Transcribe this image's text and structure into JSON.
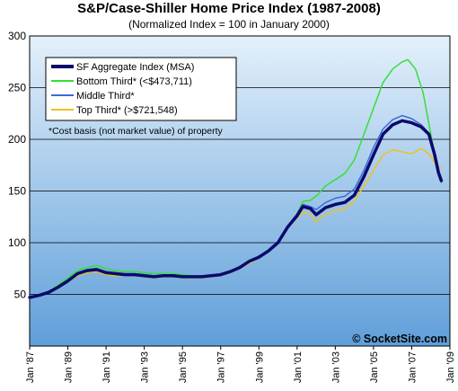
{
  "chart_data": {
    "type": "line",
    "title": "S&P/Case-Shiller Home Price Index (1987-2008)",
    "subtitle": "(Normalized Index = 100 in January 2000)",
    "note": "*Cost basis (not market value) of property",
    "watermark": "© SocketSite.com",
    "ylim": [
      0,
      300
    ],
    "yticks": [
      50,
      100,
      150,
      200,
      250,
      300
    ],
    "xlim": [
      1987.0,
      2009.0
    ],
    "xticks": [
      {
        "x": 1987,
        "label": "Jan '87"
      },
      {
        "x": 1989,
        "label": "Jan '89"
      },
      {
        "x": 1991,
        "label": "Jan '91"
      },
      {
        "x": 1993,
        "label": "Jan '93"
      },
      {
        "x": 1995,
        "label": "Jan '95"
      },
      {
        "x": 1997,
        "label": "Jan '97"
      },
      {
        "x": 1999,
        "label": "Jan '99"
      },
      {
        "x": 2001,
        "label": "Jan '01"
      },
      {
        "x": 2003,
        "label": "Jan '03"
      },
      {
        "x": 2005,
        "label": "Jan '05"
      },
      {
        "x": 2007,
        "label": "Jan '07"
      },
      {
        "x": 2009,
        "label": "Jan '09"
      }
    ],
    "grid": true,
    "legend_position": "top-left",
    "background": "gradient-blue",
    "series": [
      {
        "name": "SF Aggregate Index (MSA)",
        "color": "#0a0a6e",
        "width": 3.5,
        "points": [
          [
            1987.0,
            47
          ],
          [
            1987.5,
            49
          ],
          [
            1988.0,
            52
          ],
          [
            1988.5,
            57
          ],
          [
            1989.0,
            63
          ],
          [
            1989.5,
            70
          ],
          [
            1990.0,
            73
          ],
          [
            1990.5,
            74
          ],
          [
            1991.0,
            71
          ],
          [
            1991.5,
            70
          ],
          [
            1992.0,
            69
          ],
          [
            1992.5,
            69
          ],
          [
            1993.0,
            68
          ],
          [
            1993.5,
            67
          ],
          [
            1994.0,
            68
          ],
          [
            1994.5,
            68
          ],
          [
            1995.0,
            67
          ],
          [
            1995.5,
            67
          ],
          [
            1996.0,
            67
          ],
          [
            1996.5,
            68
          ],
          [
            1997.0,
            69
          ],
          [
            1997.5,
            72
          ],
          [
            1998.0,
            76
          ],
          [
            1998.5,
            82
          ],
          [
            1999.0,
            86
          ],
          [
            1999.5,
            92
          ],
          [
            2000.0,
            100
          ],
          [
            2000.5,
            115
          ],
          [
            2001.0,
            126
          ],
          [
            2001.3,
            135
          ],
          [
            2001.7,
            133
          ],
          [
            2002.0,
            127
          ],
          [
            2002.5,
            134
          ],
          [
            2003.0,
            137
          ],
          [
            2003.5,
            139
          ],
          [
            2004.0,
            146
          ],
          [
            2004.5,
            164
          ],
          [
            2005.0,
            185
          ],
          [
            2005.5,
            205
          ],
          [
            2006.0,
            214
          ],
          [
            2006.5,
            218
          ],
          [
            2007.0,
            216
          ],
          [
            2007.5,
            212
          ],
          [
            2007.9,
            205
          ],
          [
            2008.2,
            185
          ],
          [
            2008.4,
            168
          ],
          [
            2008.55,
            160
          ]
        ]
      },
      {
        "name": "Bottom Third* (<$473,711)",
        "color": "#33e033",
        "width": 1.5,
        "points": [
          [
            1987.0,
            46
          ],
          [
            1987.5,
            49
          ],
          [
            1988.0,
            53
          ],
          [
            1988.5,
            59
          ],
          [
            1989.0,
            66
          ],
          [
            1989.5,
            73
          ],
          [
            1990.0,
            76
          ],
          [
            1990.5,
            78
          ],
          [
            1991.0,
            75
          ],
          [
            1991.5,
            73
          ],
          [
            1992.0,
            72
          ],
          [
            1992.5,
            72
          ],
          [
            1993.0,
            71
          ],
          [
            1993.5,
            70
          ],
          [
            1994.0,
            70
          ],
          [
            1994.5,
            70
          ],
          [
            1995.0,
            69
          ],
          [
            1995.5,
            68
          ],
          [
            1996.0,
            67
          ],
          [
            1996.5,
            68
          ],
          [
            1997.0,
            69
          ],
          [
            1997.5,
            73
          ],
          [
            1998.0,
            76
          ],
          [
            1998.5,
            81
          ],
          [
            1999.0,
            86
          ],
          [
            1999.5,
            92
          ],
          [
            2000.0,
            100
          ],
          [
            2000.5,
            116
          ],
          [
            2001.0,
            128
          ],
          [
            2001.3,
            140
          ],
          [
            2001.7,
            141
          ],
          [
            2002.0,
            145
          ],
          [
            2002.5,
            155
          ],
          [
            2003.0,
            161
          ],
          [
            2003.5,
            167
          ],
          [
            2004.0,
            180
          ],
          [
            2004.5,
            205
          ],
          [
            2005.0,
            230
          ],
          [
            2005.5,
            255
          ],
          [
            2006.0,
            268
          ],
          [
            2006.5,
            275
          ],
          [
            2006.8,
            277
          ],
          [
            2007.2,
            268
          ],
          [
            2007.6,
            245
          ],
          [
            2007.9,
            215
          ],
          [
            2008.2,
            185
          ],
          [
            2008.4,
            165
          ],
          [
            2008.55,
            158
          ]
        ]
      },
      {
        "name": "Middle Third*",
        "color": "#3a6ad8",
        "width": 1.5,
        "points": [
          [
            1987.0,
            46
          ],
          [
            1987.5,
            49
          ],
          [
            1988.0,
            52
          ],
          [
            1988.5,
            58
          ],
          [
            1989.0,
            64
          ],
          [
            1989.5,
            71
          ],
          [
            1990.0,
            74
          ],
          [
            1990.5,
            75
          ],
          [
            1991.0,
            72
          ],
          [
            1991.5,
            71
          ],
          [
            1992.0,
            70
          ],
          [
            1992.5,
            70
          ],
          [
            1993.0,
            69
          ],
          [
            1993.5,
            68
          ],
          [
            1994.0,
            68
          ],
          [
            1994.5,
            69
          ],
          [
            1995.0,
            68
          ],
          [
            1995.5,
            67
          ],
          [
            1996.0,
            67
          ],
          [
            1996.5,
            68
          ],
          [
            1997.0,
            69
          ],
          [
            1997.5,
            72
          ],
          [
            1998.0,
            76
          ],
          [
            1998.5,
            82
          ],
          [
            1999.0,
            87
          ],
          [
            1999.5,
            93
          ],
          [
            2000.0,
            100
          ],
          [
            2000.5,
            116
          ],
          [
            2001.0,
            128
          ],
          [
            2001.3,
            137
          ],
          [
            2001.7,
            135
          ],
          [
            2002.0,
            132
          ],
          [
            2002.5,
            139
          ],
          [
            2003.0,
            143
          ],
          [
            2003.5,
            145
          ],
          [
            2004.0,
            152
          ],
          [
            2004.5,
            170
          ],
          [
            2005.0,
            192
          ],
          [
            2005.5,
            210
          ],
          [
            2006.0,
            219
          ],
          [
            2006.5,
            223
          ],
          [
            2007.0,
            220
          ],
          [
            2007.5,
            214
          ],
          [
            2007.9,
            206
          ],
          [
            2008.2,
            188
          ],
          [
            2008.4,
            170
          ],
          [
            2008.55,
            162
          ]
        ]
      },
      {
        "name": "Top Third* (>$721,548)",
        "color": "#f0c020",
        "width": 1.5,
        "points": [
          [
            1987.0,
            47
          ],
          [
            1987.5,
            49
          ],
          [
            1988.0,
            52
          ],
          [
            1988.5,
            56
          ],
          [
            1989.0,
            62
          ],
          [
            1989.5,
            68
          ],
          [
            1990.0,
            71
          ],
          [
            1990.5,
            72
          ],
          [
            1991.0,
            69
          ],
          [
            1991.5,
            68
          ],
          [
            1992.0,
            68
          ],
          [
            1992.5,
            68
          ],
          [
            1993.0,
            67
          ],
          [
            1993.5,
            66
          ],
          [
            1994.0,
            67
          ],
          [
            1994.5,
            67
          ],
          [
            1995.0,
            66
          ],
          [
            1995.5,
            66
          ],
          [
            1996.0,
            66
          ],
          [
            1996.5,
            67
          ],
          [
            1997.0,
            68
          ],
          [
            1997.5,
            71
          ],
          [
            1998.0,
            75
          ],
          [
            1998.5,
            80
          ],
          [
            1999.0,
            85
          ],
          [
            1999.5,
            91
          ],
          [
            2000.0,
            100
          ],
          [
            2000.5,
            114
          ],
          [
            2001.0,
            124
          ],
          [
            2001.3,
            130
          ],
          [
            2001.7,
            127
          ],
          [
            2002.0,
            120
          ],
          [
            2002.5,
            128
          ],
          [
            2003.0,
            131
          ],
          [
            2003.5,
            133
          ],
          [
            2004.0,
            140
          ],
          [
            2004.5,
            155
          ],
          [
            2005.0,
            170
          ],
          [
            2005.5,
            185
          ],
          [
            2006.0,
            190
          ],
          [
            2006.5,
            188
          ],
          [
            2007.0,
            186
          ],
          [
            2007.5,
            191
          ],
          [
            2007.9,
            186
          ],
          [
            2008.2,
            178
          ],
          [
            2008.4,
            172
          ],
          [
            2008.55,
            173
          ]
        ]
      }
    ]
  }
}
